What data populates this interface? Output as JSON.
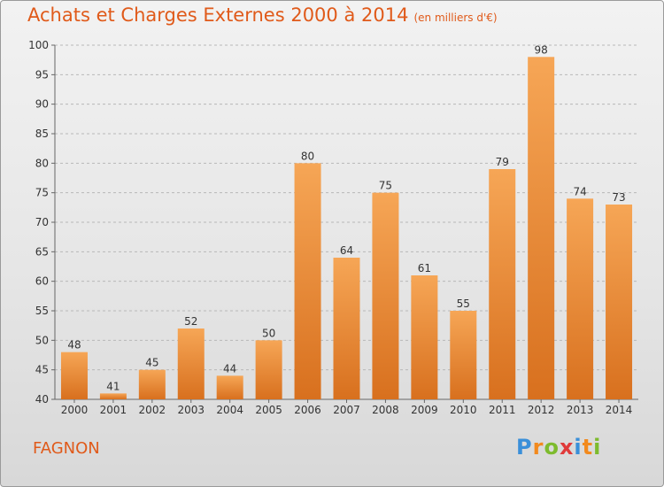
{
  "title": "Achats et Charges Externes 2000 à 2014",
  "subtitle": "(en milliers d'€)",
  "commune": "FAGNON",
  "logo": {
    "letters": [
      "P",
      "r",
      "o",
      "x",
      "i",
      "t",
      "i"
    ],
    "colors": [
      "#3a8fd9",
      "#f28a1e",
      "#7dbb2d",
      "#e03a3a",
      "#3a8fd9",
      "#f28a1e",
      "#7dbb2d"
    ]
  },
  "colors": {
    "bar_top": "#f6a656",
    "bar_bottom": "#d8701e",
    "title": "#e05a1a",
    "text": "#333333"
  },
  "chart_data": {
    "type": "bar",
    "categories": [
      "2000",
      "2001",
      "2002",
      "2003",
      "2004",
      "2005",
      "2006",
      "2007",
      "2008",
      "2009",
      "2010",
      "2011",
      "2012",
      "2013",
      "2014"
    ],
    "values": [
      48,
      41,
      45,
      52,
      44,
      50,
      80,
      64,
      75,
      61,
      55,
      79,
      98,
      74,
      73
    ],
    "ylim": [
      40,
      100
    ],
    "yticks": [
      40,
      45,
      50,
      55,
      60,
      65,
      70,
      75,
      80,
      85,
      90,
      95,
      100
    ],
    "grid": "horizontal-dashed",
    "xlabel": "",
    "ylabel": ""
  }
}
